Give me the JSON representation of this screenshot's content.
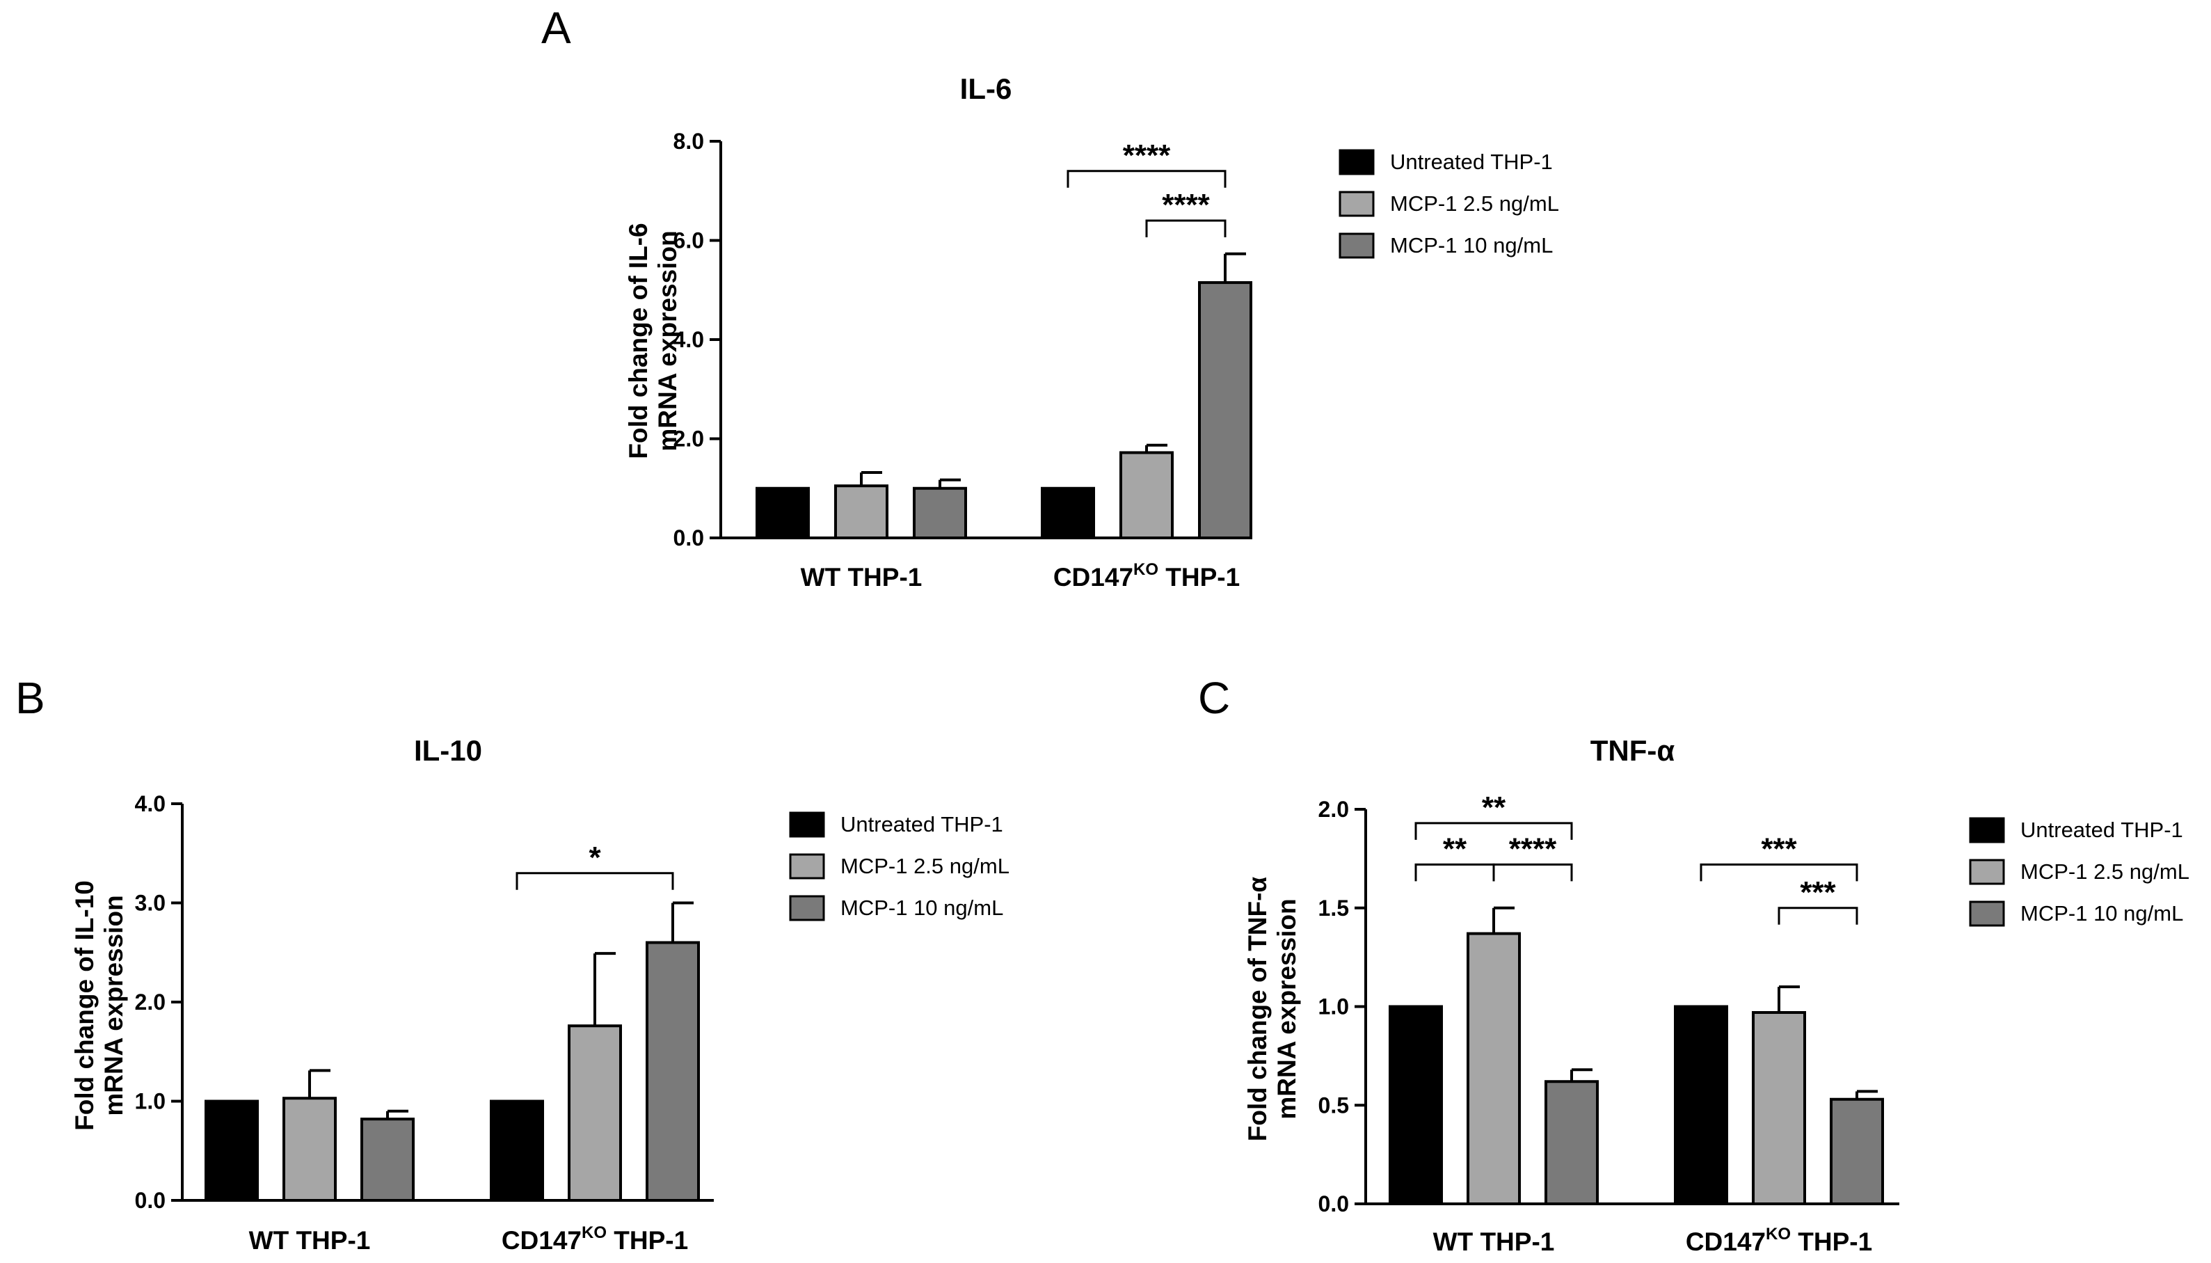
{
  "colors": {
    "untreated": "#000000",
    "mcp1_2_5": "#a6a6a6",
    "mcp1_10": "#7a7a7a",
    "axis": "#000000"
  },
  "chart_data": [
    {
      "panel": "A",
      "type": "bar",
      "title": "IL-6",
      "ylabel": [
        "Fold change of IL-6",
        "mRNA expression"
      ],
      "ylim": [
        0,
        8
      ],
      "yticks": [
        "0.0",
        "2.0",
        "4.0",
        "6.0",
        "8.0"
      ],
      "ytick_values": [
        0,
        2,
        4,
        6,
        8
      ],
      "categories": [
        {
          "main": "WT THP-1",
          "sup": "",
          "tail": ""
        },
        {
          "main": "CD147",
          "sup": "KO",
          "tail": " THP-1"
        }
      ],
      "series": [
        {
          "name": "Untreated THP-1",
          "values": [
            1.0,
            1.0
          ],
          "errors": [
            0,
            0
          ]
        },
        {
          "name": "MCP-1 2.5 ng/mL",
          "values": [
            1.05,
            1.72
          ],
          "errors": [
            0.27,
            0.15
          ]
        },
        {
          "name": "MCP-1 10 ng/mL",
          "values": [
            1.0,
            5.15
          ],
          "errors": [
            0.17,
            0.58
          ]
        }
      ],
      "legend_position": "right",
      "significance": [
        {
          "category": 1,
          "from_series": 0,
          "to_series": 2,
          "level": 7.4,
          "label": "****"
        },
        {
          "category": 1,
          "from_series": 1,
          "to_series": 2,
          "level": 6.4,
          "label": "****"
        }
      ]
    },
    {
      "panel": "B",
      "type": "bar",
      "title": "IL-10",
      "ylabel": [
        "Fold change of IL-10",
        "mRNA expression"
      ],
      "ylim": [
        0,
        4
      ],
      "yticks": [
        "0.0",
        "1.0",
        "2.0",
        "3.0",
        "4.0"
      ],
      "ytick_values": [
        0,
        1,
        2,
        3,
        4
      ],
      "categories": [
        {
          "main": "WT THP-1",
          "sup": "",
          "tail": ""
        },
        {
          "main": "CD147",
          "sup": "KO",
          "tail": " THP-1"
        }
      ],
      "series": [
        {
          "name": "Untreated THP-1",
          "values": [
            1.0,
            1.0
          ],
          "errors": [
            0,
            0
          ]
        },
        {
          "name": "MCP-1 2.5 ng/mL",
          "values": [
            1.03,
            1.76
          ],
          "errors": [
            0.28,
            0.73
          ]
        },
        {
          "name": "MCP-1 10 ng/mL",
          "values": [
            0.82,
            2.6
          ],
          "errors": [
            0.08,
            0.4
          ]
        }
      ],
      "legend_position": "right",
      "significance": [
        {
          "category": 1,
          "from_series": 0,
          "to_series": 2,
          "level": 3.3,
          "label": "*"
        }
      ]
    },
    {
      "panel": "C",
      "type": "bar",
      "title": "TNF-α",
      "ylabel": [
        "Fold change of TNF-α",
        "mRNA expression"
      ],
      "ylim": [
        0,
        2
      ],
      "yticks": [
        "0.0",
        "0.5",
        "1.0",
        "1.5",
        "2.0"
      ],
      "ytick_values": [
        0,
        0.5,
        1,
        1.5,
        2
      ],
      "categories": [
        {
          "main": "WT THP-1",
          "sup": "",
          "tail": ""
        },
        {
          "main": "CD147",
          "sup": "KO",
          "tail": " THP-1"
        }
      ],
      "series": [
        {
          "name": "Untreated THP-1",
          "values": [
            1.0,
            1.0
          ],
          "errors": [
            0,
            0
          ]
        },
        {
          "name": "MCP-1 2.5 ng/mL",
          "values": [
            1.37,
            0.97
          ],
          "errors": [
            0.13,
            0.13
          ]
        },
        {
          "name": "MCP-1 10 ng/mL",
          "values": [
            0.62,
            0.53
          ],
          "errors": [
            0.06,
            0.04
          ]
        }
      ],
      "legend_position": "right",
      "significance": [
        {
          "category": 0,
          "from_series": 0,
          "to_series": 2,
          "level": 1.93,
          "label": "**"
        },
        {
          "category": 0,
          "from_series": 0,
          "to_series": 1,
          "level": 1.72,
          "label": "**"
        },
        {
          "category": 0,
          "from_series": 1,
          "to_series": 2,
          "level": 1.72,
          "label": "****"
        },
        {
          "category": 1,
          "from_series": 0,
          "to_series": 2,
          "level": 1.72,
          "label": "***"
        },
        {
          "category": 1,
          "from_series": 1,
          "to_series": 2,
          "level": 1.5,
          "label": "***"
        }
      ]
    }
  ]
}
